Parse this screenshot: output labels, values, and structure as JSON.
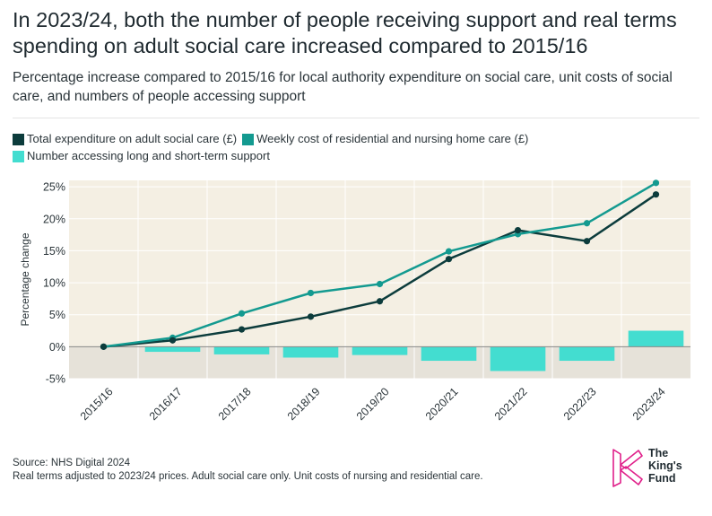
{
  "header": {
    "title": "In 2023/24, both the number of people receiving support and real terms spending on adult social care increased compared to 2015/16",
    "subtitle": "Percentage increase compared to 2015/16 for local authority expenditure on social care, unit costs of social care, and numbers of people accessing support"
  },
  "colors": {
    "expenditure": "#0c3c3c",
    "weekly_cost": "#139a90",
    "number_accessing": "#43ddd0",
    "plot_bg_positive": "#f4efe3",
    "plot_bg_negative": "#e6e2d9",
    "logo_pink": "#e0208a"
  },
  "chart_data": {
    "type": "line",
    "title": "",
    "xlabel": "",
    "ylabel": "Percentage change",
    "ylim": [
      -5,
      26
    ],
    "yticks": [
      -5,
      0,
      5,
      10,
      15,
      20,
      25
    ],
    "ytick_labels": [
      "-5%",
      "0%",
      "5%",
      "10%",
      "15%",
      "20%",
      "25%"
    ],
    "categories": [
      "2015/16",
      "2016/17",
      "2017/18",
      "2018/19",
      "2019/20",
      "2020/21",
      "2021/22",
      "2022/23",
      "2023/24"
    ],
    "legend_position": "top-left",
    "series": [
      {
        "name": "Total expenditure on adult social care (£)",
        "kind": "line",
        "values": [
          0,
          1.0,
          2.7,
          4.7,
          7.1,
          13.7,
          18.2,
          16.5,
          23.8
        ]
      },
      {
        "name": "Weekly cost of residential and nursing home care (£)",
        "kind": "line",
        "values": [
          0,
          1.4,
          5.2,
          8.4,
          9.8,
          14.9,
          17.6,
          19.3,
          25.6
        ]
      },
      {
        "name": "Number accessing long and short-term support",
        "kind": "bar",
        "values": [
          0,
          -0.8,
          -1.2,
          -1.7,
          -1.3,
          -2.2,
          -3.8,
          -2.2,
          2.5
        ]
      }
    ]
  },
  "footer": {
    "source": "Source: NHS Digital 2024",
    "note": "Real terms adjusted to 2023/24 prices. Adult social care only. Unit costs of nursing and residential care."
  },
  "logo": {
    "line1": "The",
    "line2": "King's",
    "line3": "Fund"
  }
}
